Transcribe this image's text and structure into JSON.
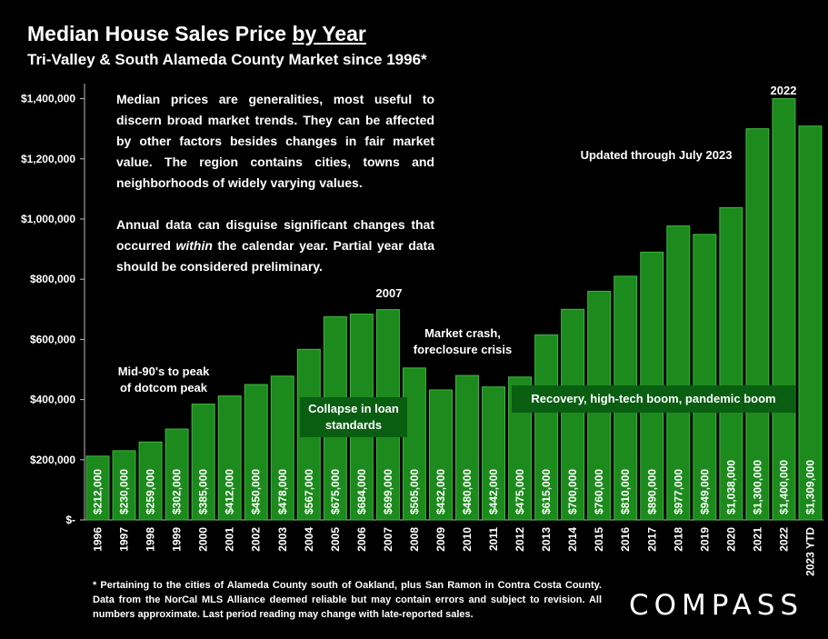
{
  "header": {
    "title_main": "Median House Sales Price ",
    "title_underlined": "by Year",
    "subtitle": "Tri-Valley & South Alameda County Market since 1996*"
  },
  "note": {
    "p1": "Median prices are generalities, most useful to discern broad market trends. They can be affected by other factors besides changes in fair market value. The region contains cities, towns and neighborhoods of widely varying values.",
    "p2_before": "Annual data can disguise significant changes that occurred ",
    "p2_emph": "within",
    "p2_after": " the calendar year. Partial year data should be considered preliminary."
  },
  "annotations": {
    "dotcom_line1": "Mid-90's to peak",
    "dotcom_line2": "of dotcom peak",
    "peak2007": "2007",
    "crash_line1": "Market crash,",
    "crash_line2": "foreclosure crisis",
    "peak2022": "2022",
    "updated": "Updated through July 2023",
    "collapse": "Collapse in loan standards",
    "recovery": "Recovery, high-tech boom, pandemic boom"
  },
  "footnote": "* Pertaining to the cities of Alameda County south of Oakland, plus San Ramon in Contra Costa County. Data from the NorCal MLS Alliance deemed reliable but may contain errors and subject to revision. All numbers approximate. Last period reading may change with late-reported sales.",
  "logo": "COMPASS",
  "colors": {
    "bar": "#1c8a1c",
    "bar_stroke": "#3fb63f",
    "box": "#0a5e12",
    "background": "#000000"
  },
  "chart_data": {
    "type": "bar",
    "title": "Median House Sales Price by Year",
    "subtitle": "Tri-Valley & South Alameda County Market since 1996*",
    "categories": [
      "1996",
      "1997",
      "1998",
      "1999",
      "2000",
      "2001",
      "2002",
      "2003",
      "2004",
      "2005",
      "2006",
      "2007",
      "2008",
      "2009",
      "2010",
      "2011",
      "2012",
      "2013",
      "2014",
      "2015",
      "2016",
      "2017",
      "2018",
      "2019",
      "2020",
      "2021",
      "2022",
      "2023 YTD"
    ],
    "values": [
      212000,
      230000,
      259000,
      302000,
      385000,
      412000,
      450000,
      478000,
      567000,
      675000,
      684000,
      699000,
      505000,
      432000,
      480000,
      442000,
      475000,
      615000,
      700000,
      760000,
      810000,
      890000,
      977000,
      949000,
      1038000,
      1300000,
      1400000,
      1309000
    ],
    "value_labels": [
      "$212,000",
      "$230,000",
      "$259,000",
      "$302,000",
      "$385,000",
      "$412,000",
      "$450,000",
      "$478,000",
      "$567,000",
      "$675,000",
      "$684,000",
      "$699,000",
      "$505,000",
      "$432,000",
      "$480,000",
      "$442,000",
      "$475,000",
      "$615,000",
      "$700,000",
      "$760,000",
      "$810,000",
      "$890,000",
      "$977,000",
      "$949,000",
      "$1,038,000",
      "$1,300,000",
      "$1,400,000",
      "$1,309,000"
    ],
    "ylim": [
      0,
      1450000
    ],
    "yticks": [
      0,
      200000,
      400000,
      600000,
      800000,
      1000000,
      1200000,
      1400000
    ],
    "ytick_labels": [
      "$-",
      "$200,000",
      "$400,000",
      "$600,000",
      "$800,000",
      "$1,000,000",
      "$1,200,000",
      "$1,400,000"
    ],
    "grid": false,
    "legend": "none"
  }
}
